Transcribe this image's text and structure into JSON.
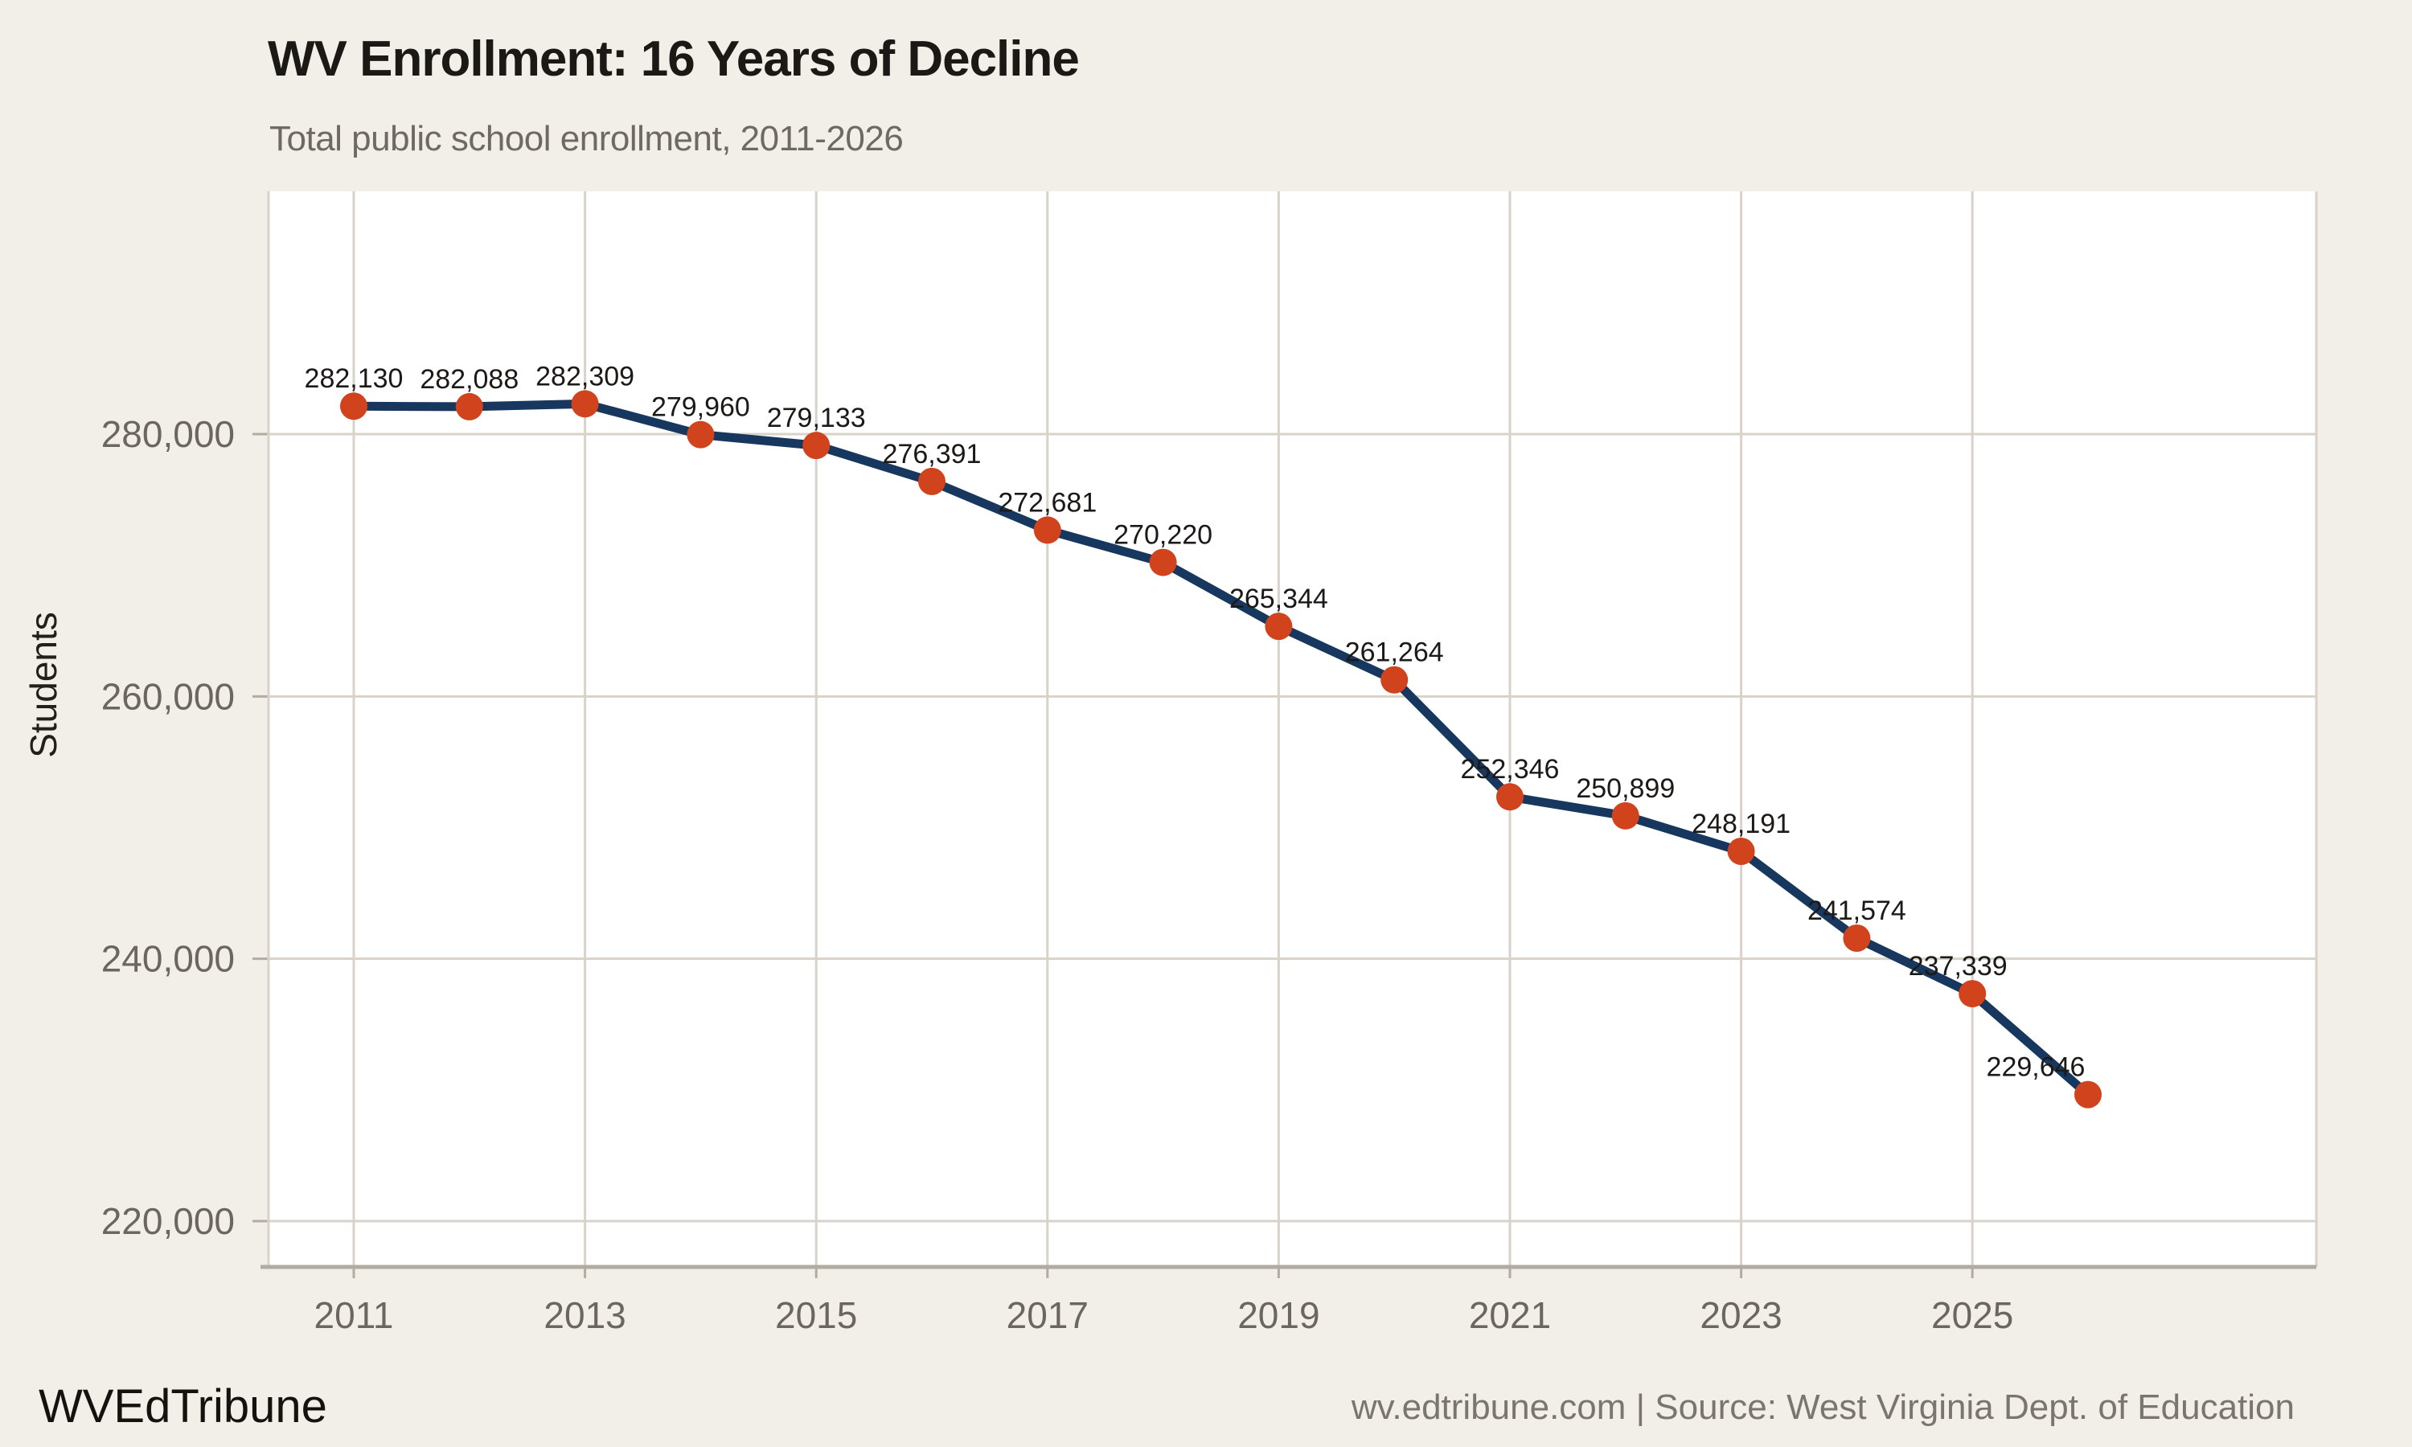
{
  "page": {
    "background": "#f2efe9"
  },
  "header": {
    "title": "WV Enrollment: 16 Years of Decline",
    "subtitle": "Total public school enrollment, 2011-2026"
  },
  "footer": {
    "brand": "WVEdTribune",
    "source": "wv.edtribune.com | Source: West Virginia Dept. of Education"
  },
  "chart_data": {
    "type": "line",
    "title": "WV Enrollment: 16 Years of Decline",
    "subtitle": "Total public school enrollment, 2011-2026",
    "xlabel": "",
    "ylabel": "Students",
    "x": [
      2011,
      2012,
      2013,
      2014,
      2015,
      2016,
      2017,
      2018,
      2019,
      2020,
      2021,
      2022,
      2023,
      2024,
      2025,
      2026
    ],
    "values": [
      282130,
      282088,
      282309,
      279960,
      279133,
      276391,
      272681,
      270220,
      265344,
      261264,
      252346,
      250899,
      248191,
      241574,
      237339,
      229646
    ],
    "point_labels": [
      "282,130",
      "282,088",
      "282,309",
      "279,960",
      "279,133",
      "276,391",
      "272,681",
      "270,220",
      "265,344",
      "261,264",
      "252,346",
      "250,899",
      "248,191",
      "241,574",
      "237,339",
      "229,646"
    ],
    "x_ticks": [
      "2011",
      "2013",
      "2015",
      "2017",
      "2019",
      "2021",
      "2023",
      "2025"
    ],
    "y_ticks": [
      {
        "value": 280000,
        "label": "280,000"
      },
      {
        "value": 260000,
        "label": "260,000"
      },
      {
        "value": 240000,
        "label": "240,000"
      },
      {
        "value": 220000,
        "label": "220,000"
      }
    ],
    "ylim": [
      216500,
      298500
    ],
    "xlim": [
      2010.3,
      2027.9
    ],
    "grid": true,
    "legend_position": "none",
    "colors": {
      "line": "#17375e",
      "marker": "#d1431d",
      "panel": "#ffffff",
      "grid": "#d8d2c9",
      "axis": "#b2aba1",
      "tick_label": "#6b675f",
      "data_label": "#1c1a17",
      "background": "#f2efe9"
    }
  }
}
